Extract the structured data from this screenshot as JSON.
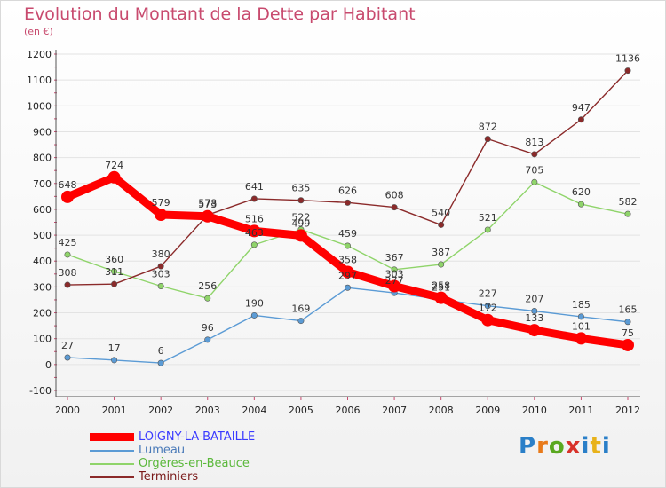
{
  "header": {
    "title": "Evolution du Montant de la Dette par Habitant",
    "subtitle": "(en €)"
  },
  "logo": {
    "text": "Proxiti",
    "colors": [
      "#2a7fc8",
      "#e87a1a",
      "#5aa820",
      "#d8322a",
      "#2a7fc8",
      "#e8b21a",
      "#2a7fc8"
    ]
  },
  "chart_data": {
    "type": "line",
    "title": "Evolution du Montant de la Dette par Habitant",
    "subtitle": "(en €)",
    "x": [
      "2000",
      "2001",
      "2002",
      "2003",
      "2004",
      "2005",
      "2006",
      "2007",
      "2008",
      "2009",
      "2010",
      "2011",
      "2012"
    ],
    "ylim": [
      -100,
      1200
    ],
    "yticks": [
      "-100",
      "0",
      "100",
      "200",
      "300",
      "400",
      "500",
      "600",
      "700",
      "800",
      "900",
      "1000",
      "1100",
      "1200"
    ],
    "grid": true,
    "legend_position": "bottom-left",
    "series": [
      {
        "name": "LOIGNY-LA-BATAILLE",
        "color": "#ff0000",
        "legend_color": "#3a3aff",
        "values": [
          648,
          724,
          579,
          573,
          516,
          499,
          358,
          303,
          258,
          172,
          133,
          101,
          75
        ],
        "labels": [
          "648",
          "724",
          "579",
          "573",
          "516",
          "499",
          "358",
          "303",
          "258",
          "172",
          "133",
          "101",
          "75"
        ]
      },
      {
        "name": "Lumeau",
        "color": "#5b9bd5",
        "legend_color": "#4a7ab8",
        "values": [
          27,
          17,
          6,
          96,
          190,
          169,
          297,
          277,
          251,
          227,
          207,
          185,
          165
        ],
        "labels": [
          "27",
          "17",
          "6",
          "96",
          "190",
          "169",
          "297",
          "277",
          "251",
          "227",
          "207",
          "185",
          "165"
        ]
      },
      {
        "name": "Orgères-en-Beauce",
        "color": "#8fd46a",
        "legend_color": "#5ab83a",
        "values": [
          425,
          360,
          303,
          256,
          463,
          522,
          459,
          367,
          387,
          521,
          705,
          620,
          582
        ],
        "labels": [
          "425",
          "360",
          "303",
          "256",
          "463",
          "522",
          "459",
          "367",
          "387",
          "521",
          "705",
          "620",
          "582"
        ]
      },
      {
        "name": "Terminiers",
        "color": "#8b2a2a",
        "legend_color": "#7a1a1a",
        "values": [
          308,
          311,
          380,
          578,
          641,
          635,
          626,
          608,
          540,
          872,
          813,
          947,
          1136
        ],
        "labels": [
          "308",
          "311",
          "380",
          "578",
          "641",
          "635",
          "626",
          "608",
          "540",
          "872",
          "813",
          "947",
          "1136"
        ]
      }
    ]
  }
}
